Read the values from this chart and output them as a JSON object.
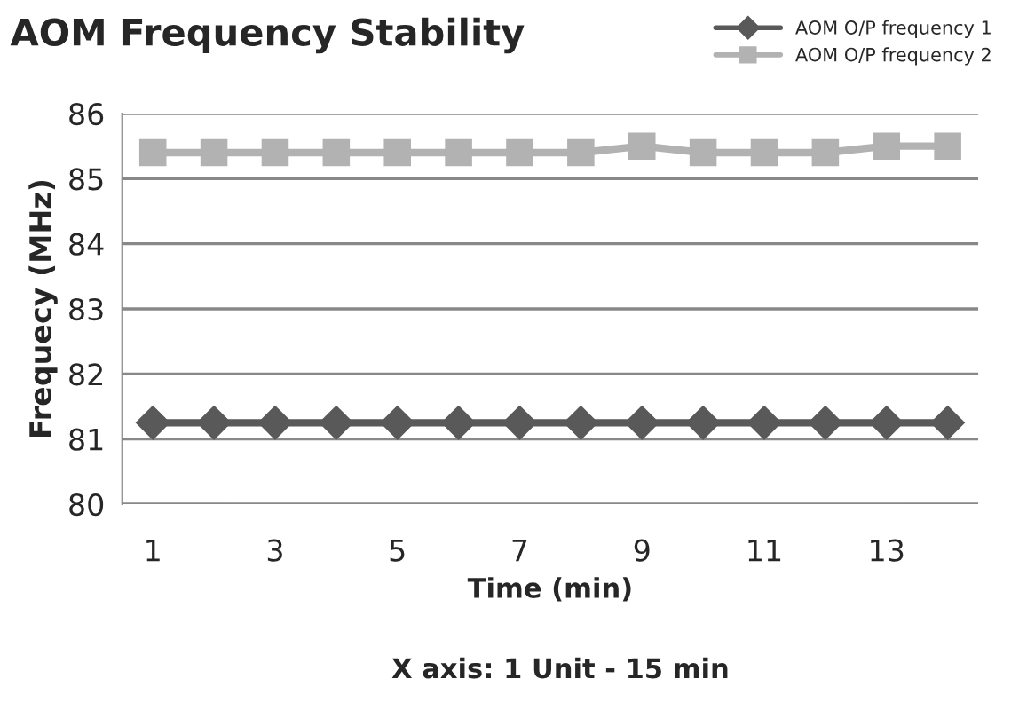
{
  "chart_data": {
    "type": "line",
    "title": "AOM Frequency Stability",
    "xlabel": "Time (min)",
    "ylabel": "Frequecy (MHz)",
    "annotations": [
      "X axis: 1 Unit - 15 min"
    ],
    "categories": [
      "1",
      null,
      "3",
      null,
      "5",
      null,
      "7",
      null,
      "9",
      null,
      "11",
      null,
      "13",
      null
    ],
    "series": [
      {
        "name": "AOM O/P frequency 1",
        "color": "#595959",
        "marker": "diamond",
        "values": [
          81.25,
          81.25,
          81.25,
          81.25,
          81.25,
          81.25,
          81.25,
          81.25,
          81.25,
          81.25,
          81.25,
          81.25,
          81.25,
          81.25
        ]
      },
      {
        "name": "AOM O/P frequency 2",
        "color": "#b2b2b2",
        "marker": "square",
        "values": [
          85.4,
          85.4,
          85.4,
          85.4,
          85.4,
          85.4,
          85.4,
          85.4,
          85.5,
          85.4,
          85.4,
          85.4,
          85.5,
          85.5
        ]
      }
    ],
    "ylim": [
      80,
      86
    ],
    "yticks": [
      80,
      81,
      82,
      83,
      84,
      85,
      86
    ],
    "grid": "y",
    "legend": "top right"
  }
}
